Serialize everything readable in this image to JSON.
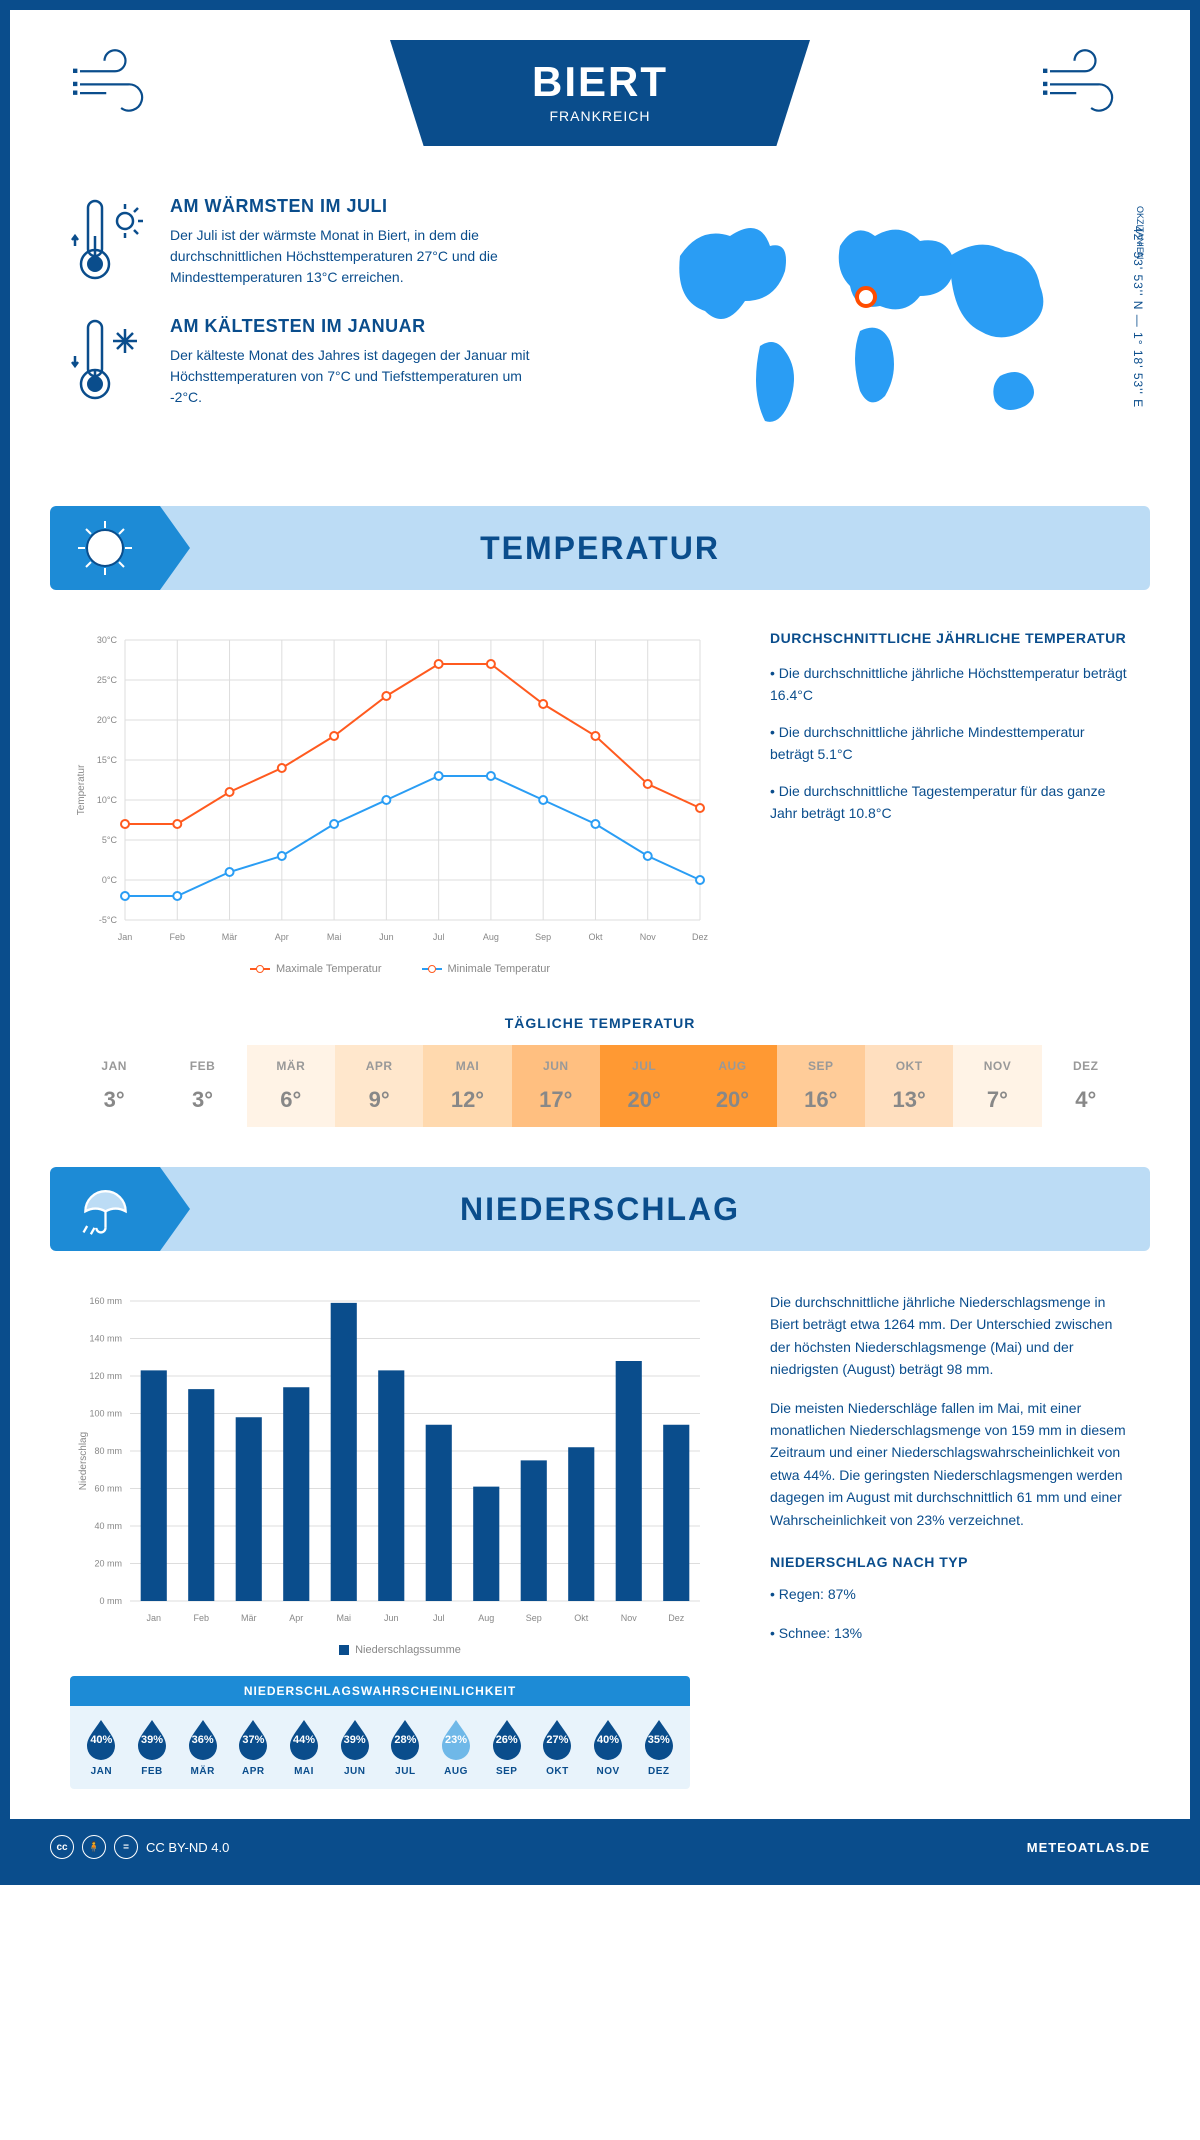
{
  "header": {
    "city": "BIERT",
    "country": "FRANKREICH",
    "coordinates": "42° 53' 53'' N — 1° 18' 53'' E",
    "region": "OKZITANIEN"
  },
  "facts": {
    "warmest": {
      "title": "AM WÄRMSTEN IM JULI",
      "text": "Der Juli ist der wärmste Monat in Biert, in dem die durchschnittlichen Höchsttemperaturen 27°C und die Mindesttemperaturen 13°C erreichen."
    },
    "coldest": {
      "title": "AM KÄLTESTEN IM JANUAR",
      "text": "Der kälteste Monat des Jahres ist dagegen der Januar mit Höchsttemperaturen von 7°C und Tiefsttemperaturen um -2°C."
    }
  },
  "sections": {
    "temperature": "TEMPERATUR",
    "precipitation": "NIEDERSCHLAG"
  },
  "months": [
    "Jan",
    "Feb",
    "Mär",
    "Apr",
    "Mai",
    "Jun",
    "Jul",
    "Aug",
    "Sep",
    "Okt",
    "Nov",
    "Dez"
  ],
  "months_upper": [
    "JAN",
    "FEB",
    "MÄR",
    "APR",
    "MAI",
    "JUN",
    "JUL",
    "AUG",
    "SEP",
    "OKT",
    "NOV",
    "DEZ"
  ],
  "temp_chart": {
    "type": "line",
    "ylabel": "Temperatur",
    "ylim": [
      -5,
      30
    ],
    "ytick_step": 5,
    "y_suffix": "°C",
    "series": {
      "max": {
        "label": "Maximale Temperatur",
        "color": "#ff5a1f",
        "values": [
          7,
          7,
          11,
          14,
          18,
          23,
          27,
          27,
          22,
          18,
          12,
          9
        ]
      },
      "min": {
        "label": "Minimale Temperatur",
        "color": "#2a9df4",
        "values": [
          -2,
          -2,
          1,
          3,
          7,
          10,
          13,
          13,
          10,
          7,
          3,
          0
        ]
      }
    },
    "grid_color": "#dddddd",
    "background_color": "#ffffff",
    "marker_size": 4
  },
  "temp_summary": {
    "title": "DURCHSCHNITTLICHE JÄHRLICHE TEMPERATUR",
    "b1": "• Die durchschnittliche jährliche Höchsttemperatur beträgt 16.4°C",
    "b2": "• Die durchschnittliche jährliche Mindesttemperatur beträgt 5.1°C",
    "b3": "• Die durchschnittliche Tagestemperatur für das ganze Jahr beträgt 10.8°C"
  },
  "daily": {
    "title": "TÄGLICHE TEMPERATUR",
    "values": [
      3,
      3,
      6,
      9,
      12,
      17,
      20,
      20,
      16,
      13,
      7,
      4
    ],
    "colors": [
      "#ffffff",
      "#ffffff",
      "#fff3e6",
      "#ffe7cc",
      "#ffd9ae",
      "#ffbf80",
      "#ff9933",
      "#ff9933",
      "#ffcc99",
      "#ffdfbf",
      "#fff3e6",
      "#ffffff"
    ]
  },
  "precip_chart": {
    "type": "bar",
    "ylabel": "Niederschlag",
    "ylim": [
      0,
      160
    ],
    "ytick_step": 20,
    "y_suffix": " mm",
    "values": [
      123,
      113,
      98,
      114,
      159,
      123,
      94,
      61,
      75,
      82,
      128,
      94
    ],
    "bar_color": "#0a4d8c",
    "grid_color": "#dddddd",
    "legend": "Niederschlagssumme"
  },
  "precip_text": {
    "p1": "Die durchschnittliche jährliche Niederschlagsmenge in Biert beträgt etwa 1264 mm. Der Unterschied zwischen der höchsten Niederschlagsmenge (Mai) und der niedrigsten (August) beträgt 98 mm.",
    "p2": "Die meisten Niederschläge fallen im Mai, mit einer monatlichen Niederschlagsmenge von 159 mm in diesem Zeitraum und einer Niederschlagswahrscheinlichkeit von etwa 44%. Die geringsten Niederschlagsmengen werden dagegen im August mit durchschnittlich 61 mm und einer Wahrscheinlichkeit von 23% verzeichnet.",
    "type_title": "NIEDERSCHLAG NACH TYP",
    "rain": "• Regen: 87%",
    "snow": "• Schnee: 13%"
  },
  "prob": {
    "title": "NIEDERSCHLAGSWAHRSCHEINLICHKEIT",
    "values": [
      40,
      39,
      36,
      37,
      44,
      39,
      28,
      23,
      26,
      27,
      40,
      35
    ],
    "fill_color": "#0a4d8c",
    "light_color": "#6fb8e8",
    "min_index": 7
  },
  "footer": {
    "license": "CC BY-ND 4.0",
    "site": "METEOATLAS.DE"
  },
  "colors": {
    "primary": "#0a4d8c",
    "accent": "#1d8bd6",
    "light_blue": "#bcdcf5",
    "orange": "#ff5a1f",
    "sky": "#2a9df4"
  }
}
